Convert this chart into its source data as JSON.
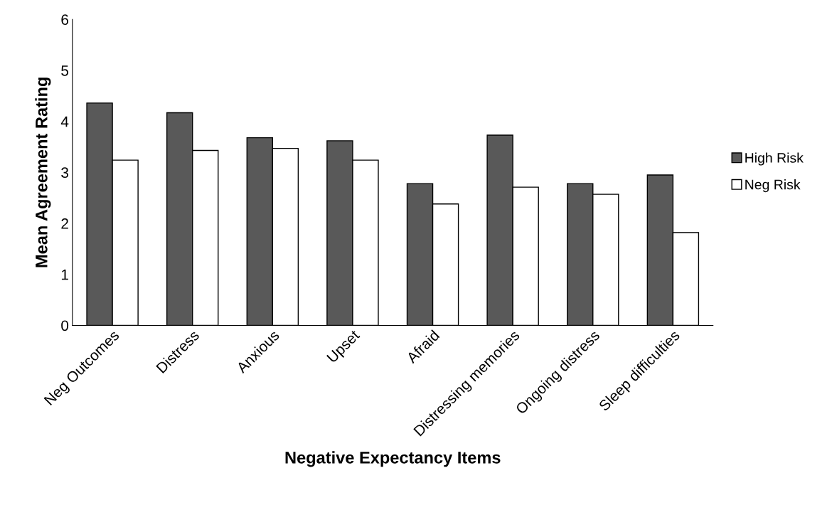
{
  "chart_data": {
    "type": "bar",
    "xlabel": "Negative Expectancy Items",
    "ylabel": "Mean Agreement Rating",
    "categories": [
      "Neg Outcomes",
      "Distress",
      "Anxious",
      "Upset",
      "Afraid",
      "Distressing memories",
      "Ongoing distress",
      "Sleep difficulties"
    ],
    "series": [
      {
        "name": "High Risk",
        "color": "#595959",
        "values": [
          4.36,
          4.17,
          3.68,
          3.62,
          2.78,
          3.73,
          2.78,
          2.95
        ]
      },
      {
        "name": "Neg Risk",
        "color": "#ffffff",
        "values": [
          3.24,
          3.43,
          3.47,
          3.24,
          2.38,
          2.71,
          2.57,
          1.82
        ]
      }
    ],
    "ylim": [
      0,
      6
    ],
    "yticks": [
      0,
      1,
      2,
      3,
      4,
      5,
      6
    ],
    "grid": false,
    "legend": "right"
  }
}
